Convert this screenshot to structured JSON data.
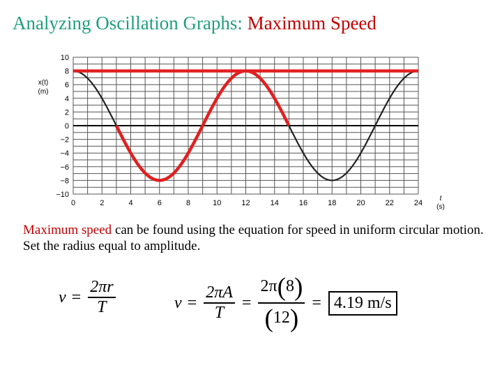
{
  "title": {
    "part1": "Analyzing Oscillation Graphs:",
    "part2": "Maximum Speed",
    "part1_color": "#1f9e7e",
    "part2_color": "#c00000"
  },
  "body": {
    "highlight": "Maximum speed",
    "rest": " can be found using the equation for speed in uniform circular motion. Set the radius equal to amplitude.",
    "highlight_color": "#c00000"
  },
  "equations": {
    "eq1": {
      "lhs": "v",
      "eq": "=",
      "num": "2πr",
      "den": "T"
    },
    "eq2": {
      "lhs": "v",
      "eq": "=",
      "num": "2πA",
      "den": "T",
      "eq2": "=",
      "num2_coef": "2π",
      "num2_val": "8",
      "den2_val": "12",
      "eq3": "=",
      "result": "4.19 m/s"
    }
  },
  "chart_data": {
    "type": "line",
    "title": "",
    "ylabel": "x(t) (m)",
    "xlabel": "t (s)",
    "xlim": [
      0,
      24
    ],
    "ylim": [
      -10,
      10
    ],
    "xticks": [
      0,
      2,
      4,
      6,
      8,
      10,
      12,
      14,
      16,
      18,
      20,
      22,
      24
    ],
    "yticks": [
      10,
      8,
      6,
      4,
      2,
      0,
      -2,
      -4,
      -6,
      -8,
      -10
    ],
    "grid": true,
    "series": [
      {
        "kind": "function",
        "amplitude": 8,
        "period": 12,
        "phase": "cos",
        "x": [
          0,
          1,
          2,
          3,
          4,
          5,
          6,
          7,
          8,
          9,
          10,
          11,
          12,
          13,
          14,
          15,
          16,
          17,
          18,
          19,
          20,
          21,
          22,
          23,
          24
        ],
        "y": [
          8,
          6.93,
          4,
          0,
          -4,
          -6.93,
          -8,
          -6.93,
          -4,
          0,
          4,
          6.93,
          8,
          6.93,
          4,
          0,
          -4,
          -6.93,
          -8,
          -6.93,
          -4,
          0,
          4,
          6.93,
          8
        ],
        "color": "#222222"
      },
      {
        "kind": "highlight-slope",
        "x": [
          3,
          4,
          5,
          6,
          7,
          8,
          9,
          10,
          11,
          12,
          13,
          14,
          15
        ],
        "y": [
          0,
          -4,
          -6.93,
          -8,
          -6.93,
          -4,
          0,
          4,
          6.93,
          8,
          6.93,
          4,
          0
        ],
        "color": "#e02020"
      },
      {
        "kind": "amplitude-line",
        "x": [
          0,
          24
        ],
        "y": [
          8,
          8
        ],
        "color": "#e02020"
      }
    ]
  }
}
